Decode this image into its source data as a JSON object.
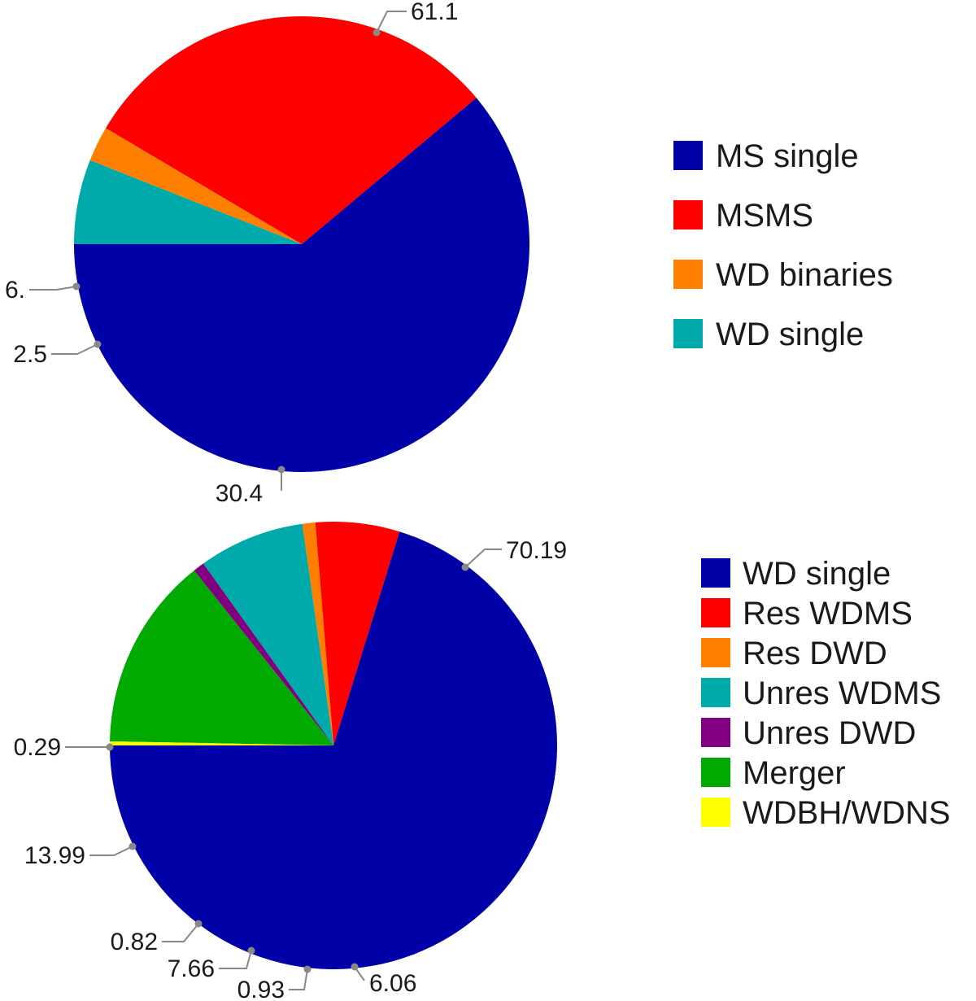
{
  "chart_data": [
    {
      "type": "pie",
      "legend_position": "right",
      "slices": [
        {
          "label": "MS single",
          "value": 61.1,
          "value_label": "61.1",
          "color": "#0000a8"
        },
        {
          "label": "MSMS",
          "value": 30.4,
          "value_label": "30.4",
          "color": "#ff0000"
        },
        {
          "label": "WD binaries",
          "value": 2.5,
          "value_label": "2.5",
          "color": "#ff8000"
        },
        {
          "label": "WD single",
          "value": 6.0,
          "value_label": "6.",
          "color": "#00aaaa"
        }
      ]
    },
    {
      "type": "pie",
      "legend_position": "right",
      "slices": [
        {
          "label": "WD single",
          "value": 70.19,
          "value_label": "70.19",
          "color": "#0000a8"
        },
        {
          "label": "Res WDMS",
          "value": 6.06,
          "value_label": "6.06",
          "color": "#ff0000"
        },
        {
          "label": "Res DWD",
          "value": 0.93,
          "value_label": "0.93",
          "color": "#ff8000"
        },
        {
          "label": "Unres WDMS",
          "value": 7.66,
          "value_label": "7.66",
          "color": "#00aaaa"
        },
        {
          "label": "Unres DWD",
          "value": 0.82,
          "value_label": "0.82",
          "color": "#800080"
        },
        {
          "label": "Merger",
          "value": 13.99,
          "value_label": "13.99",
          "color": "#00aa00"
        },
        {
          "label": "WDBH/WDNS",
          "value": 0.29,
          "value_label": "0.29",
          "color": "#ffff00"
        }
      ]
    }
  ]
}
